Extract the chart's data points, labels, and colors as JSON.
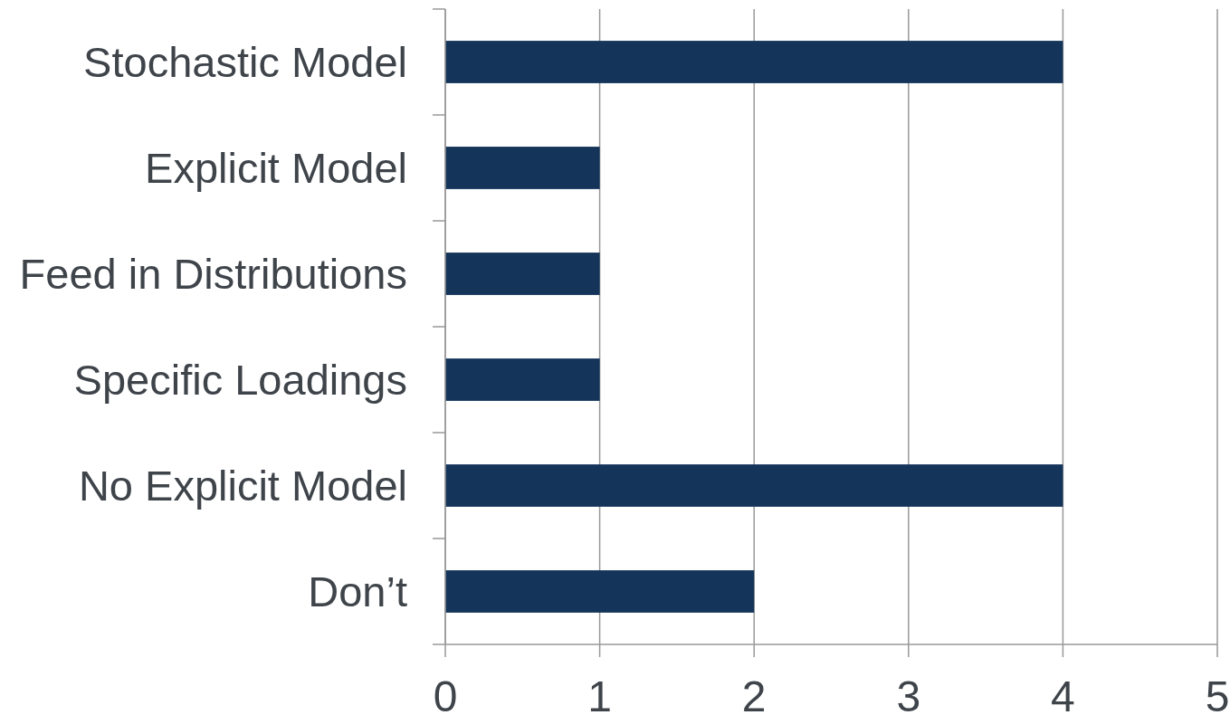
{
  "chart_data": {
    "type": "bar",
    "orientation": "horizontal",
    "categories": [
      "Stochastic Model",
      "Explicit Model",
      "Feed in Distributions",
      "Specific Loadings",
      "No Explicit Model",
      "Don’t"
    ],
    "values": [
      4,
      1,
      1,
      1,
      4,
      2
    ],
    "color": "#14345a",
    "xlim": [
      0,
      5
    ],
    "xticks": [
      0,
      1,
      2,
      3,
      4,
      5
    ],
    "grid": "x"
  }
}
